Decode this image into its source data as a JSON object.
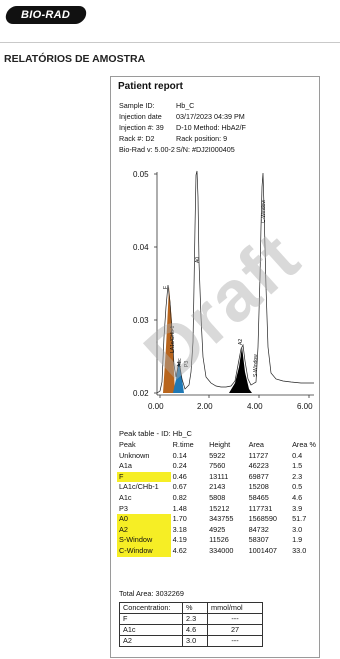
{
  "brand": {
    "logo_text": "BIO-RAD"
  },
  "section_title": "RELATÓRIOS DE AMOSTRA",
  "report": {
    "title": "Patient report",
    "info": [
      {
        "label": "Sample ID:",
        "value": "Hb_C"
      },
      {
        "label": "Injection date",
        "value": "03/17/2023 04:39 PM"
      },
      {
        "label": "Injection #: 39",
        "value": "D-10 Method: HbA2/F"
      },
      {
        "label": "Rack #: D2",
        "value": "Rack position: 9"
      },
      {
        "label": "Bio-Rad v: 5.00-2",
        "value": "S/N: #DJ2I000405"
      }
    ],
    "watermark": "Draft",
    "peak_table_title": "Peak table - ID: Hb_C",
    "peak_table": {
      "headers": [
        "Peak",
        "R.time",
        "Height",
        "Area",
        "Area %"
      ],
      "rows": [
        {
          "cells": [
            "Unknown",
            "0.14",
            "5922",
            "11727",
            "0.4"
          ],
          "highlight": false
        },
        {
          "cells": [
            "A1a",
            "0.24",
            "7560",
            "46223",
            "1.5"
          ],
          "highlight": false
        },
        {
          "cells": [
            "F",
            "0.46",
            "13111",
            "69877",
            "2.3"
          ],
          "highlight": true
        },
        {
          "cells": [
            "LA1c/CHb-1",
            "0.67",
            "2143",
            "15208",
            "0.5"
          ],
          "highlight": false
        },
        {
          "cells": [
            "A1c",
            "0.82",
            "5808",
            "58465",
            "4.6"
          ],
          "highlight": false
        },
        {
          "cells": [
            "P3",
            "1.48",
            "15212",
            "117731",
            "3.9"
          ],
          "highlight": false
        },
        {
          "cells": [
            "A0",
            "1.70",
            "343755",
            "1568590",
            "51.7"
          ],
          "highlight": true
        },
        {
          "cells": [
            "A2",
            "3.18",
            "4925",
            "84732",
            "3.0"
          ],
          "highlight": true
        },
        {
          "cells": [
            "S-Window",
            "4.19",
            "11526",
            "58307",
            "1.9"
          ],
          "highlight": true
        },
        {
          "cells": [
            "C-Window",
            "4.62",
            "334000",
            "1001407",
            "33.0"
          ],
          "highlight": true
        }
      ]
    },
    "total_area_label": "Total Area:",
    "total_area_value": "3032269",
    "concentration": {
      "headers": [
        "Concentration:",
        "%",
        "mmol/mol"
      ],
      "rows": [
        [
          "F",
          "2.3",
          "---"
        ],
        [
          "A1c",
          "4.6",
          "27"
        ],
        [
          "A2",
          "3.0",
          "---"
        ]
      ]
    },
    "chromatogram": {
      "y_ticks": [
        "0.05",
        "0.04",
        "0.03",
        "0.02"
      ],
      "x_ticks": [
        "0.00",
        "2.00",
        "4.00",
        "6.00"
      ],
      "peak_labels": [
        "F",
        "LA1c/CHb-1",
        "A1c",
        "P3",
        "A0",
        "A2",
        "S-Window",
        "C-Window"
      ],
      "colors": {
        "f_peak": "#b8651d",
        "a1c_peak": "#1f78b4",
        "a2_peak": "#000000",
        "highlight": "#f6ee25"
      }
    }
  }
}
